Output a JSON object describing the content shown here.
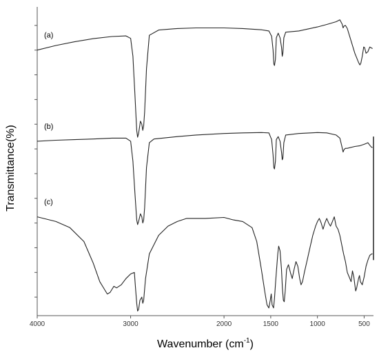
{
  "chart_data": {
    "type": "line",
    "title": "",
    "xlabel": "Wavenumber (cm",
    "xlabel_sup": "-1",
    "xlabel_end": ")",
    "ylabel": "Transmittance(%)",
    "xlim": [
      4000,
      400
    ],
    "x_reversed": true,
    "ylim": [
      0,
      100
    ],
    "grid": false,
    "x_ticks": [
      "4000",
      "3000",
      "2000",
      "1500",
      "1000",
      "500"
    ],
    "x_tick_values": [
      4000,
      3000,
      2000,
      1500,
      1000,
      500
    ],
    "y_tick_values": [
      6,
      14,
      22,
      30,
      38,
      46,
      54,
      62,
      70,
      78,
      86,
      94
    ],
    "colors": {
      "line": "#222222",
      "axis": "#555555",
      "text": "#000000"
    },
    "series": [
      {
        "name": "(a)",
        "points": [
          [
            4000,
            86
          ],
          [
            3800,
            87.5
          ],
          [
            3600,
            88.7
          ],
          [
            3400,
            89.7
          ],
          [
            3200,
            90.4
          ],
          [
            3050,
            90.6
          ],
          [
            3000,
            89.8
          ],
          [
            2975,
            84
          ],
          [
            2955,
            72
          ],
          [
            2935,
            60
          ],
          [
            2925,
            57.8
          ],
          [
            2915,
            59
          ],
          [
            2895,
            63
          ],
          [
            2880,
            62
          ],
          [
            2870,
            60
          ],
          [
            2860,
            61.5
          ],
          [
            2850,
            66
          ],
          [
            2830,
            80
          ],
          [
            2800,
            90.8
          ],
          [
            2700,
            92.5
          ],
          [
            2500,
            93
          ],
          [
            2300,
            93.2
          ],
          [
            2000,
            93.2
          ],
          [
            1800,
            93
          ],
          [
            1600,
            92.6
          ],
          [
            1520,
            92.2
          ],
          [
            1490,
            90.5
          ],
          [
            1475,
            86
          ],
          [
            1467,
            81.5
          ],
          [
            1460,
            81
          ],
          [
            1450,
            83
          ],
          [
            1440,
            90
          ],
          [
            1420,
            91.5
          ],
          [
            1400,
            90
          ],
          [
            1385,
            87
          ],
          [
            1377,
            84
          ],
          [
            1370,
            85
          ],
          [
            1360,
            90
          ],
          [
            1340,
            91.8
          ],
          [
            1200,
            92.2
          ],
          [
            1000,
            93.5
          ],
          [
            900,
            94.3
          ],
          [
            800,
            95.2
          ],
          [
            760,
            95.8
          ],
          [
            735,
            94.4
          ],
          [
            725,
            93.2
          ],
          [
            715,
            93.8
          ],
          [
            700,
            94
          ],
          [
            680,
            93
          ],
          [
            650,
            90
          ],
          [
            600,
            85
          ],
          [
            560,
            82
          ],
          [
            545,
            81.2
          ],
          [
            535,
            81.8
          ],
          [
            520,
            84
          ],
          [
            505,
            87
          ],
          [
            495,
            86.8
          ],
          [
            480,
            85
          ],
          [
            460,
            85.5
          ],
          [
            440,
            87
          ],
          [
            410,
            86.5
          ]
        ]
      },
      {
        "name": "(b)",
        "points": [
          [
            4000,
            56.5
          ],
          [
            3800,
            56.8
          ],
          [
            3600,
            57
          ],
          [
            3400,
            57.2
          ],
          [
            3200,
            57.5
          ],
          [
            3050,
            57.5
          ],
          [
            3000,
            56.5
          ],
          [
            2975,
            50
          ],
          [
            2955,
            40
          ],
          [
            2935,
            31
          ],
          [
            2925,
            29.5
          ],
          [
            2915,
            30.5
          ],
          [
            2895,
            33
          ],
          [
            2880,
            32
          ],
          [
            2870,
            30
          ],
          [
            2860,
            31
          ],
          [
            2850,
            35
          ],
          [
            2830,
            48
          ],
          [
            2800,
            56
          ],
          [
            2750,
            57.2
          ],
          [
            2500,
            58
          ],
          [
            2300,
            58.5
          ],
          [
            2000,
            59
          ],
          [
            1800,
            59.2
          ],
          [
            1600,
            59.3
          ],
          [
            1520,
            59.2
          ],
          [
            1490,
            57
          ],
          [
            1475,
            52
          ],
          [
            1467,
            48
          ],
          [
            1460,
            47.5
          ],
          [
            1450,
            50
          ],
          [
            1440,
            57
          ],
          [
            1420,
            58
          ],
          [
            1400,
            56.5
          ],
          [
            1385,
            53
          ],
          [
            1377,
            50.5
          ],
          [
            1370,
            51
          ],
          [
            1360,
            56
          ],
          [
            1340,
            58.5
          ],
          [
            1200,
            59
          ],
          [
            1000,
            59.3
          ],
          [
            900,
            59.2
          ],
          [
            800,
            58.5
          ],
          [
            760,
            57.5
          ],
          [
            740,
            55
          ],
          [
            725,
            53
          ],
          [
            715,
            53.8
          ],
          [
            700,
            54.2
          ],
          [
            680,
            54.2
          ],
          [
            600,
            54.8
          ],
          [
            550,
            55
          ],
          [
            500,
            55.5
          ],
          [
            460,
            56
          ],
          [
            440,
            55.2
          ],
          [
            420,
            54.5
          ],
          [
            410,
            54.5
          ]
        ]
      },
      {
        "name": "(c)",
        "points": [
          [
            4000,
            32
          ],
          [
            3800,
            30.5
          ],
          [
            3650,
            28.5
          ],
          [
            3500,
            24
          ],
          [
            3400,
            17
          ],
          [
            3330,
            11
          ],
          [
            3280,
            8.5
          ],
          [
            3250,
            7
          ],
          [
            3220,
            7.5
          ],
          [
            3180,
            9.5
          ],
          [
            3150,
            9
          ],
          [
            3100,
            10
          ],
          [
            3050,
            12
          ],
          [
            3000,
            13.5
          ],
          [
            2960,
            14
          ],
          [
            2950,
            10
          ],
          [
            2935,
            4
          ],
          [
            2925,
            1.5
          ],
          [
            2915,
            2
          ],
          [
            2900,
            5
          ],
          [
            2880,
            6
          ],
          [
            2870,
            4
          ],
          [
            2860,
            5
          ],
          [
            2840,
            12
          ],
          [
            2800,
            20
          ],
          [
            2700,
            26
          ],
          [
            2600,
            29
          ],
          [
            2500,
            30.5
          ],
          [
            2400,
            31.5
          ],
          [
            2200,
            31.5
          ],
          [
            2000,
            31.8
          ],
          [
            1900,
            31
          ],
          [
            1800,
            30.5
          ],
          [
            1700,
            28.5
          ],
          [
            1650,
            24
          ],
          [
            1600,
            15
          ],
          [
            1560,
            7
          ],
          [
            1540,
            3.5
          ],
          [
            1520,
            2.5
          ],
          [
            1505,
            5
          ],
          [
            1495,
            7
          ],
          [
            1485,
            3.5
          ],
          [
            1470,
            2.5
          ],
          [
            1460,
            5.5
          ],
          [
            1450,
            10
          ],
          [
            1440,
            14
          ],
          [
            1425,
            20
          ],
          [
            1415,
            22.5
          ],
          [
            1400,
            21
          ],
          [
            1385,
            15
          ],
          [
            1375,
            9
          ],
          [
            1365,
            5
          ],
          [
            1355,
            4.5
          ],
          [
            1345,
            8
          ],
          [
            1330,
            15
          ],
          [
            1310,
            16.5
          ],
          [
            1290,
            14
          ],
          [
            1270,
            12
          ],
          [
            1250,
            15
          ],
          [
            1230,
            17.5
          ],
          [
            1210,
            16
          ],
          [
            1190,
            12
          ],
          [
            1175,
            10
          ],
          [
            1160,
            11
          ],
          [
            1140,
            14
          ],
          [
            1110,
            18
          ],
          [
            1080,
            22
          ],
          [
            1050,
            26
          ],
          [
            1020,
            29
          ],
          [
            1000,
            30.5
          ],
          [
            980,
            31.5
          ],
          [
            960,
            30
          ],
          [
            940,
            28
          ],
          [
            920,
            30
          ],
          [
            900,
            31.5
          ],
          [
            880,
            30
          ],
          [
            860,
            29
          ],
          [
            840,
            30.5
          ],
          [
            820,
            32
          ],
          [
            800,
            29
          ],
          [
            780,
            28
          ],
          [
            760,
            26
          ],
          [
            740,
            23
          ],
          [
            720,
            20
          ],
          [
            700,
            17.5
          ],
          [
            680,
            14
          ],
          [
            660,
            12.5
          ],
          [
            640,
            11
          ],
          [
            625,
            14.5
          ],
          [
            610,
            12.5
          ],
          [
            600,
            10
          ],
          [
            590,
            8
          ],
          [
            580,
            9
          ],
          [
            560,
            12
          ],
          [
            550,
            13
          ],
          [
            540,
            11
          ],
          [
            520,
            10
          ],
          [
            500,
            12.5
          ],
          [
            480,
            16
          ],
          [
            460,
            18
          ],
          [
            440,
            19.5
          ],
          [
            420,
            20
          ],
          [
            410,
            20
          ]
        ]
      }
    ]
  }
}
